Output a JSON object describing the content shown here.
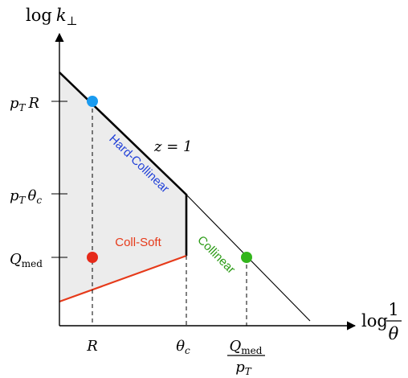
{
  "axes": {
    "y_label_prefix": "log",
    "y_label_var": "k",
    "y_label_sub": "⊥",
    "x_label_prefix": "log",
    "x_label_num": "1",
    "x_label_den": "θ"
  },
  "y_ticks": {
    "pT_R_a": "p",
    "pT_R_sub": "T",
    "pT_R_b": "R",
    "pT_thc_a": "p",
    "pT_thc_sub": "T",
    "pT_thc_b": "θ",
    "pT_thc_sub2": "c",
    "Qmed_a": "Q",
    "Qmed_sub": "med"
  },
  "x_ticks": {
    "R": "R",
    "thc": "θ",
    "thc_sub": "c",
    "Qmed_num": "Q",
    "Qmed_num_sub": "med",
    "Qmed_den": "p",
    "Qmed_den_sub": "T"
  },
  "annotations": {
    "z_equals": "z = 1"
  },
  "regions": {
    "hard_collinear": "Hard-Collinear",
    "coll_soft": "Coll-Soft",
    "collinear": "Collinear"
  },
  "colors": {
    "hard_collinear": "#1f3fd8",
    "coll_soft": "#e63a1a",
    "collinear": "#2a9a14",
    "point_blue": "#1a9bf0",
    "point_red": "#e62a1a",
    "point_green": "#33b51c",
    "shade": "#ececec"
  }
}
